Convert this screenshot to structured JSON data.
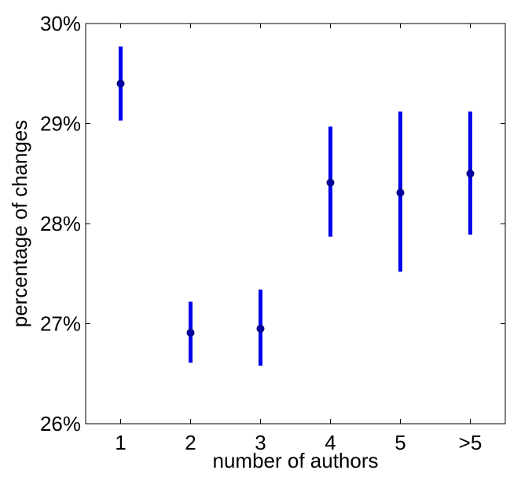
{
  "chart_data": {
    "type": "scatter",
    "title": "",
    "xlabel": "number of authors",
    "ylabel": "percentage of changes",
    "categories": [
      "1",
      "2",
      "3",
      "4",
      "5",
      ">5"
    ],
    "series": [
      {
        "values": [
          29.4,
          26.91,
          26.95,
          28.41,
          28.31,
          28.5
        ],
        "lower": [
          29.03,
          26.61,
          26.58,
          27.87,
          27.52,
          27.89
        ],
        "upper": [
          29.77,
          27.22,
          27.34,
          28.97,
          29.12,
          29.12
        ]
      }
    ],
    "ylim": [
      26,
      30
    ],
    "yticks": [
      26,
      27,
      28,
      29,
      30
    ],
    "ytick_labels": [
      "26%",
      "27%",
      "28%",
      "29%",
      "30%"
    ],
    "grid": false,
    "colors": {
      "errorbar": "#0000ee",
      "marker_fill": "#0000aa",
      "marker_edge": "#000066",
      "axes": "#000000"
    }
  }
}
